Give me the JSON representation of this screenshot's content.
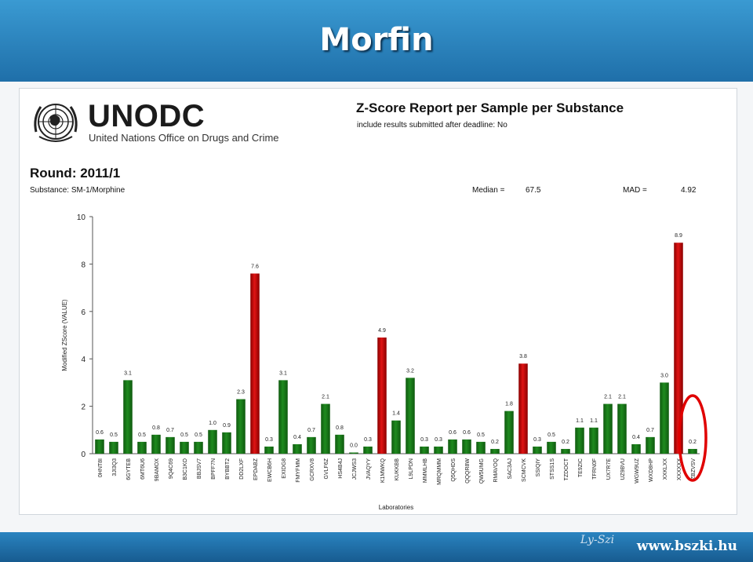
{
  "slide": {
    "title": "Morfin",
    "footer_url": "www.bszki.hu",
    "footer_signature": "Ly-Szi"
  },
  "report": {
    "logo": {
      "name": "UNODC",
      "subtitle": "United Nations Office on Drugs and Crime"
    },
    "title": "Z-Score Report per Sample per Substance",
    "note": "include results submitted after deadline: No",
    "round": "Round: 2011/1",
    "substance": "Substance: SM-1/Morphine",
    "median_label": "Median =",
    "median_value": "67.5",
    "mad_label": "MAD =",
    "mad_value": "4.92"
  },
  "chart_data": {
    "type": "bar",
    "xlabel": "Laboratories",
    "ylabel": "Modified ZScore (VALUE)",
    "ylim": [
      0,
      10
    ],
    "yticks": [
      0,
      2,
      4,
      6,
      8,
      10
    ],
    "grid": false,
    "categories": [
      "0HNT8I",
      "3JI3Q3",
      "6GYTEB",
      "6MT6U6",
      "9BAMOX",
      "9Q4C69",
      "B3C1KO",
      "BBJSV7",
      "BPFF7N",
      "BYBBT2",
      "DD2LXF",
      "EPDABZ",
      "EWCB6H",
      "EXIDG8",
      "FMYFMM",
      "GCRXV8",
      "GVLF6Z",
      "HS4B4J",
      "JCJWS3",
      "JVAQYY",
      "K1MWKQ",
      "KUKKBB",
      "L9LPDN",
      "MMMLHB",
      "MRQMMM",
      "Q5QHDS",
      "QQQR8W",
      "QW5UMG",
      "RMAVOQ",
      "SAC3AJ",
      "SCMCVK",
      "SSIQIY",
      "STSS1S",
      "TZDOCT",
      "TE9ZIC",
      "TFRN0F",
      "UX7R7E",
      "UZ9BVU",
      "WGW9UZ",
      "WXD8HP",
      "XXKLXX",
      "XXXXXX",
      "ZBZVSV"
    ],
    "values": [
      0.6,
      0.5,
      3.1,
      0.5,
      0.8,
      0.7,
      0.5,
      0.5,
      1.0,
      0.9,
      2.3,
      7.6,
      0.3,
      3.1,
      0.4,
      0.7,
      2.1,
      0.8,
      0.0,
      0.3,
      4.9,
      1.4,
      3.2,
      0.3,
      0.3,
      0.6,
      0.6,
      0.5,
      0.2,
      1.8,
      3.8,
      0.3,
      0.5,
      0.2,
      1.1,
      1.1,
      2.1,
      2.1,
      0.4,
      0.7,
      3.0,
      8.9,
      0.2
    ],
    "data_labels": [
      "0.6",
      "0.5",
      "3.1",
      "0.5",
      "0.8",
      "0.7",
      "0.5",
      "0.5",
      "1.0",
      "0.9",
      "2.3",
      "7.6",
      "0.3",
      "3.1",
      "0.4",
      "0.7",
      "2.1",
      "0.8",
      "0.0",
      "0.3",
      "4.9",
      "1.4",
      "3.2",
      "0.3",
      "0.3",
      "0.6",
      "0.6",
      "0.5",
      "0.2",
      "1.8",
      "3.8",
      "0.3",
      "0.5",
      "0.2",
      "1.1",
      "1.1",
      "2.1",
      "2.1",
      "0.4",
      "0.7",
      "3.0",
      "8.9",
      "0.2"
    ],
    "threshold": 3.5,
    "colors": {
      "normal": "#1f8a1f",
      "normal_dark": "#0f5a0f",
      "outlier": "#e01414",
      "outlier_dark": "#8a0000",
      "highlight": "#e00000"
    },
    "highlighted_category": "ZBZVSV"
  }
}
